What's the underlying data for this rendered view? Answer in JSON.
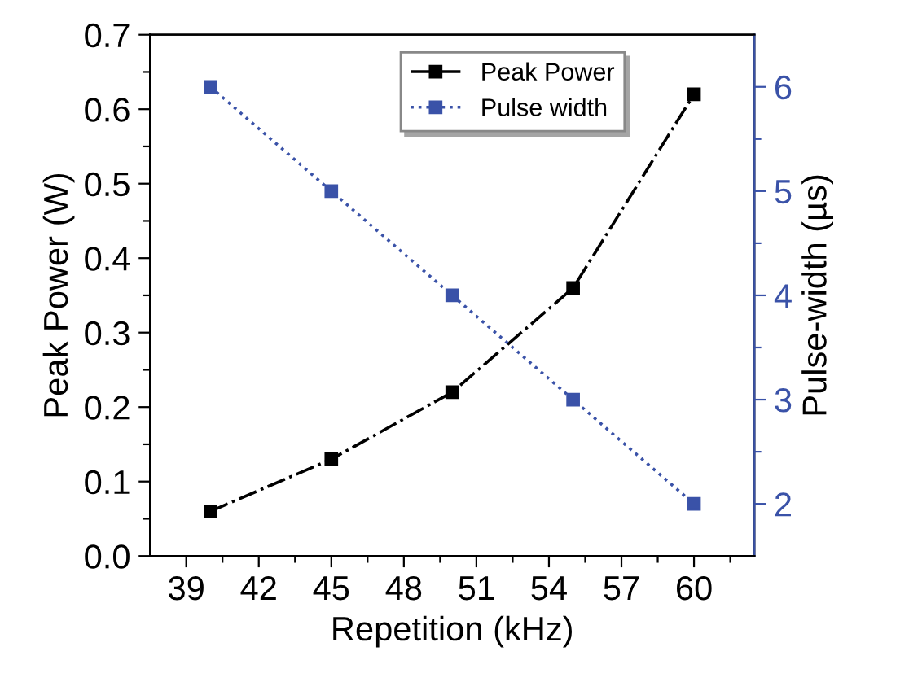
{
  "chart_data": {
    "type": "line",
    "xlabel": "Repetition (kHz)",
    "ylabel": "Peak Power (W)",
    "y2label": "Pulse-width (µs)",
    "x": [
      40,
      45,
      50,
      55,
      60
    ],
    "series": [
      {
        "name": "Peak Power",
        "color": "#000000",
        "values": [
          0.06,
          0.13,
          0.22,
          0.36,
          0.62
        ],
        "line_style": "dashdot",
        "marker": "square"
      },
      {
        "name": "Pulse width",
        "color": "#3a52a8",
        "values": [
          6,
          5,
          4,
          3,
          2
        ],
        "axis": "y2",
        "line_style": "dotted",
        "marker": "square"
      }
    ],
    "xlim": [
      37.5,
      62.5
    ],
    "xticks": [
      39,
      {
        "value": 40.5,
        "label": null
      },
      42,
      {
        "value": 43.5,
        "label": null
      },
      45,
      {
        "value": 46.5,
        "label": null
      },
      48,
      {
        "value": 49.5,
        "label": null
      },
      51,
      {
        "value": 52.5,
        "label": null
      },
      54,
      {
        "value": 55.5,
        "label": null
      },
      57,
      {
        "value": 58.5,
        "label": null
      },
      60,
      {
        "value": 61.5,
        "label": null
      }
    ],
    "ylim": [
      0,
      0.7
    ],
    "yticks": [
      {
        "value": 0,
        "label": "0.0"
      },
      {
        "value": 0.05,
        "label": null
      },
      0.1,
      {
        "value": 0.15,
        "label": null
      },
      0.2,
      {
        "value": 0.25,
        "label": null
      },
      0.3,
      {
        "value": 0.35,
        "label": null
      },
      0.4,
      {
        "value": 0.45,
        "label": null
      },
      0.5,
      {
        "value": 0.55,
        "label": null
      },
      0.6,
      {
        "value": 0.65,
        "label": null
      },
      0.7
    ],
    "y2lim": [
      1.5,
      6.5
    ],
    "y2ticks": [
      2,
      {
        "value": 2.5,
        "label": null
      },
      3,
      {
        "value": 3.5,
        "label": null
      },
      4,
      {
        "value": 4.5,
        "label": null
      },
      5,
      {
        "value": 5.5,
        "label": null
      },
      6
    ],
    "legend": "top",
    "grid": false
  }
}
